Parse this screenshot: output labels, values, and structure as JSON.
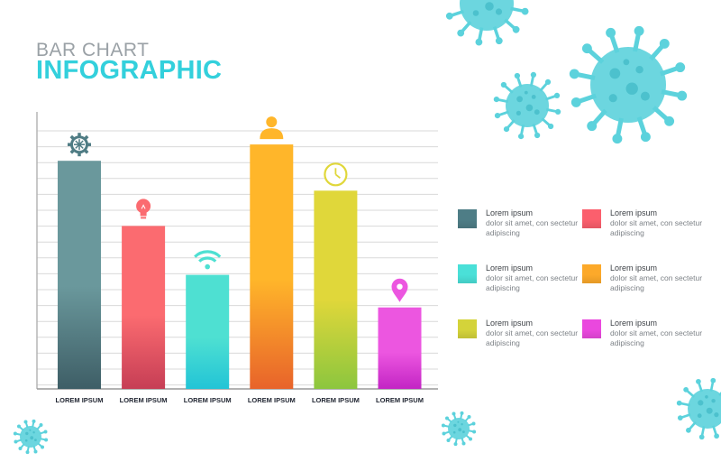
{
  "header": {
    "title_line1": "BAR CHART",
    "title_line2": "INFOGRAPHIC"
  },
  "chart_data": {
    "type": "bar",
    "categories": [
      "LOREM IPSUM",
      "LOREM IPSUM",
      "LOREM IPSUM",
      "LOREM IPSUM",
      "LOREM IPSUM",
      "LOREM IPSUM"
    ],
    "values": [
      84,
      60,
      42,
      90,
      73,
      30
    ],
    "ylim": [
      0,
      100
    ],
    "grid": true,
    "axis_tick_labels": false,
    "bar_icons": [
      "gear-icon",
      "lightbulb-icon",
      "wifi-icon",
      "person-icon",
      "clock-icon",
      "location-pin-icon"
    ],
    "bar_colors": [
      {
        "top": "#6a989c",
        "bottom": "#3e5e66"
      },
      {
        "top": "#fb6b70",
        "bottom": "#c63e55"
      },
      {
        "top": "#4ee0d2",
        "bottom": "#22c4d6"
      },
      {
        "top": "#ffb62a",
        "bottom": "#e8632a"
      },
      {
        "top": "#e0d73a",
        "bottom": "#8cc63e"
      },
      {
        "top": "#ec56e0",
        "bottom": "#c325c4"
      }
    ]
  },
  "legend": {
    "items": [
      {
        "title": "Lorem ipsum",
        "desc": "dolor sit amet, con sectetur adipiscing",
        "color": "#4e7d86"
      },
      {
        "title": "Lorem ipsum",
        "desc": "dolor sit amet, con sectetur adipiscing",
        "color": "#fb5f6d"
      },
      {
        "title": "Lorem ipsum",
        "desc": "dolor sit amet, con sectetur adipiscing",
        "color": "#4ae0d8"
      },
      {
        "title": "Lorem ipsum",
        "desc": "dolor sit amet, con sectetur adipiscing",
        "color": "#fca92a"
      },
      {
        "title": "Lorem ipsum",
        "desc": "dolor sit amet, con sectetur adipiscing",
        "color": "#d4d33a"
      },
      {
        "title": "Lorem ipsum",
        "desc": "dolor sit amet, con sectetur adipiscing",
        "color": "#ea48de"
      }
    ]
  },
  "decor": {
    "virus_color": "#5cd2dc",
    "virus_icon": "virus-icon"
  }
}
